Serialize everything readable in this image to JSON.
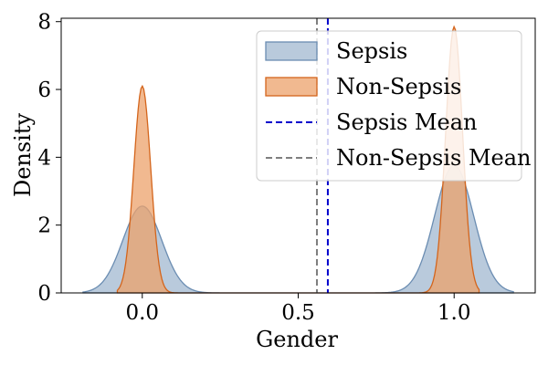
{
  "chart_data": {
    "type": "area",
    "title": "",
    "xlabel": "Gender",
    "ylabel": "Density",
    "xlim": [
      -0.26,
      1.26
    ],
    "ylim": [
      0,
      8.1
    ],
    "x_ticks": [
      0.0,
      0.5,
      1.0
    ],
    "x_tick_labels": [
      "0.0",
      "0.5",
      "1.0"
    ],
    "y_ticks": [
      0,
      2,
      4,
      6,
      8
    ],
    "y_tick_labels": [
      "0",
      "2",
      "4",
      "6",
      "8"
    ],
    "grid": false,
    "legend_position": "top-right",
    "series": [
      {
        "name": "Sepsis",
        "kind": "density",
        "color": "#8aa6c4",
        "edge_color": "#6b8db2",
        "x_range": [
          -0.19,
          1.19
        ],
        "components": [
          {
            "mu": 0.0,
            "sigma": 0.0625,
            "peak": 2.56
          },
          {
            "mu": 1.0,
            "sigma": 0.0625,
            "peak": 3.76
          }
        ]
      },
      {
        "name": "Non-Sepsis",
        "kind": "density",
        "color": "#eca26b",
        "edge_color": "#d4651c",
        "x_range": [
          -0.08,
          1.08
        ],
        "components": [
          {
            "mu": 0.0,
            "sigma": 0.027,
            "peak": 6.1
          },
          {
            "mu": 1.0,
            "sigma": 0.027,
            "peak": 7.85
          }
        ]
      },
      {
        "name": "Sepsis Mean",
        "kind": "vline",
        "x": 0.595,
        "color": "#0000cc",
        "style": "dashed"
      },
      {
        "name": "Non-Sepsis Mean",
        "kind": "vline",
        "x": 0.56,
        "color": "#7f7f7f",
        "style": "dashed"
      }
    ]
  }
}
